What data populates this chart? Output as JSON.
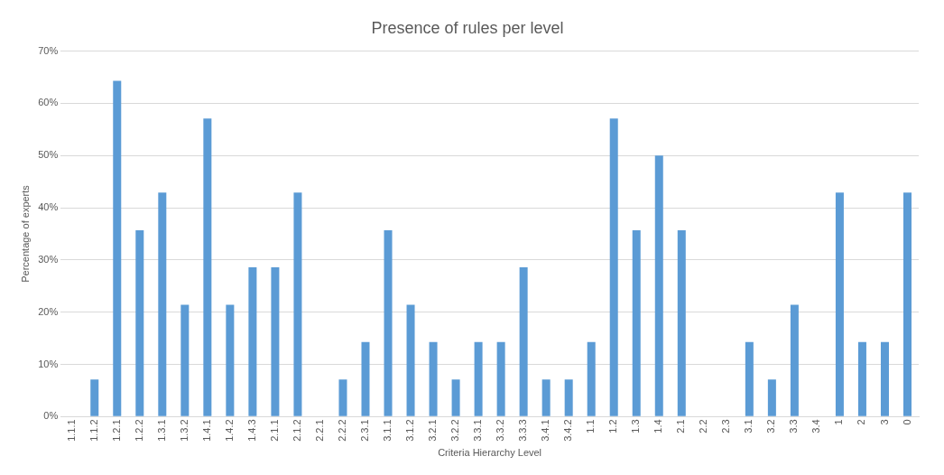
{
  "chart_data": {
    "type": "bar",
    "title": "Presence of rules per level",
    "xlabel": "Criteria Hierarchy Level",
    "ylabel": "Percentage of experts",
    "categories": [
      "1.1.1",
      "1.1.2",
      "1.2.1",
      "1.2.2",
      "1.3.1",
      "1.3.2",
      "1.4.1",
      "1.4.2",
      "1.4.3",
      "2.1.1",
      "2.1.2",
      "2.2.1",
      "2.2.2",
      "2.3.1",
      "3.1.1",
      "3.1.2",
      "3.2.1",
      "3.2.2",
      "3.3.1",
      "3.3.2",
      "3.3.3",
      "3.4.1",
      "3.4.2",
      "1.1",
      "1.2",
      "1.3",
      "1.4",
      "2.1",
      "2.2",
      "2.3",
      "3.1",
      "3.2",
      "3.3",
      "3.4",
      "1",
      "2",
      "3",
      "0"
    ],
    "series": [
      {
        "color": "#5b9bd5",
        "values": [
          0,
          7.1,
          64.3,
          35.7,
          42.9,
          21.4,
          57.1,
          21.4,
          28.6,
          28.6,
          42.9,
          0,
          7.1,
          14.3,
          35.7,
          21.4,
          14.3,
          7.1,
          14.3,
          14.3,
          28.6,
          7.1,
          7.1,
          14.3,
          57.1,
          35.7,
          50,
          35.7,
          0,
          0,
          14.3,
          7.1,
          21.4,
          0,
          42.9,
          14.3,
          14.3,
          42.9
        ]
      }
    ],
    "ylim": [
      0,
      70
    ],
    "yticks": [
      {
        "value": 0,
        "label": "0%"
      },
      {
        "value": 10,
        "label": "10%"
      },
      {
        "value": 20,
        "label": "20%"
      },
      {
        "value": 30,
        "label": "30%"
      },
      {
        "value": 40,
        "label": "40%"
      },
      {
        "value": 50,
        "label": "50%"
      },
      {
        "value": 60,
        "label": "60%"
      },
      {
        "value": 70,
        "label": "70%"
      }
    ],
    "grid": "y",
    "legend": false
  }
}
